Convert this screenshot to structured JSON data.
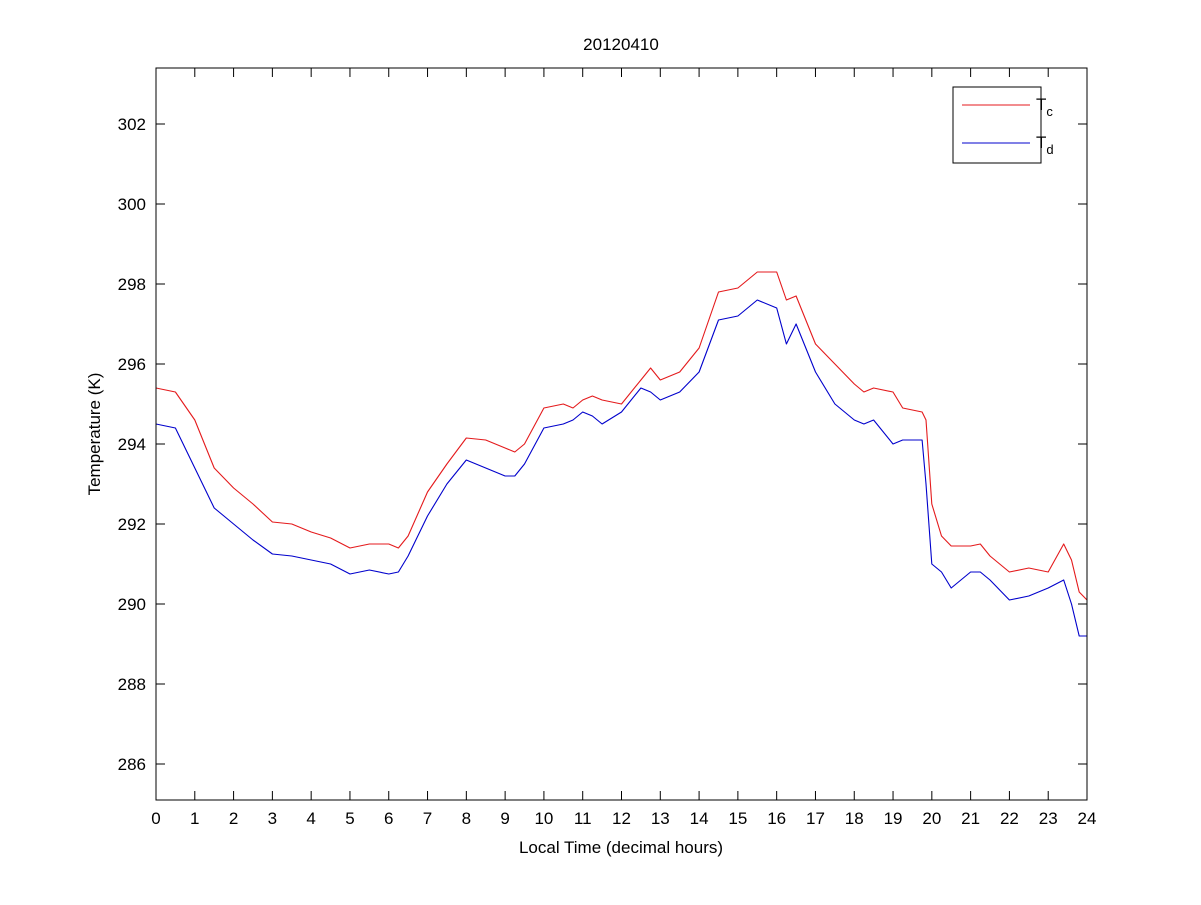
{
  "chart_data": {
    "type": "line",
    "title": "20120410",
    "xlabel": "Local Time (decimal hours)",
    "ylabel": "Temperature (K)",
    "xlim": [
      0,
      24
    ],
    "ylim": [
      285.1,
      303.4
    ],
    "xticks": [
      0,
      1,
      2,
      3,
      4,
      5,
      6,
      7,
      8,
      9,
      10,
      11,
      12,
      13,
      14,
      15,
      16,
      17,
      18,
      19,
      20,
      21,
      22,
      23,
      24
    ],
    "yticks": [
      286,
      288,
      290,
      292,
      294,
      296,
      298,
      300,
      302
    ],
    "grid": false,
    "legend_position": "top-right",
    "x": [
      0,
      0.5,
      1,
      1.5,
      2,
      2.5,
      3,
      3.5,
      4,
      4.5,
      5,
      5.5,
      6,
      6.25,
      6.5,
      7,
      7.5,
      8,
      8.5,
      9,
      9.25,
      9.5,
      10,
      10.5,
      10.75,
      11,
      11.25,
      11.5,
      12,
      12.5,
      12.75,
      13,
      13.5,
      14,
      14.5,
      15,
      15.5,
      16,
      16.25,
      16.5,
      17,
      17.5,
      18,
      18.25,
      18.5,
      19,
      19.25,
      19.75,
      19.85,
      20,
      20.25,
      20.5,
      21,
      21.25,
      21.5,
      22,
      22.5,
      23,
      23.4,
      23.6,
      23.8,
      24
    ],
    "series": [
      {
        "name": "T",
        "subscript": "c",
        "color": "#e41a1c",
        "values": [
          295.4,
          295.3,
          294.6,
          293.4,
          292.9,
          292.5,
          292.05,
          292.0,
          291.8,
          291.65,
          291.4,
          291.5,
          291.5,
          291.4,
          291.7,
          292.8,
          293.5,
          294.15,
          294.1,
          293.9,
          293.8,
          294.0,
          294.9,
          295.0,
          294.9,
          295.1,
          295.2,
          295.1,
          295.0,
          295.6,
          295.9,
          295.6,
          295.8,
          296.4,
          297.8,
          297.9,
          298.3,
          298.3,
          297.6,
          297.7,
          296.5,
          296.0,
          295.5,
          295.3,
          295.4,
          295.3,
          294.9,
          294.8,
          294.6,
          292.5,
          291.7,
          291.45,
          291.45,
          291.5,
          291.2,
          290.8,
          290.9,
          290.8,
          291.5,
          291.1,
          290.3,
          290.1
        ]
      },
      {
        "name": "T",
        "subscript": "d",
        "color": "#0000cc",
        "values": [
          294.5,
          294.4,
          293.4,
          292.4,
          292.0,
          291.6,
          291.25,
          291.2,
          291.1,
          291.0,
          290.75,
          290.85,
          290.75,
          290.8,
          291.2,
          292.2,
          293.0,
          293.6,
          293.4,
          293.2,
          293.2,
          293.5,
          294.4,
          294.5,
          294.6,
          294.8,
          294.7,
          294.5,
          294.8,
          295.4,
          295.3,
          295.1,
          295.3,
          295.8,
          297.1,
          297.2,
          297.6,
          297.4,
          296.5,
          297.0,
          295.8,
          295.0,
          294.6,
          294.5,
          294.6,
          294.0,
          294.1,
          294.1,
          293.0,
          291.0,
          290.8,
          290.4,
          290.8,
          290.8,
          290.6,
          290.1,
          290.2,
          290.4,
          290.6,
          290.0,
          289.2,
          289.2
        ]
      }
    ]
  }
}
